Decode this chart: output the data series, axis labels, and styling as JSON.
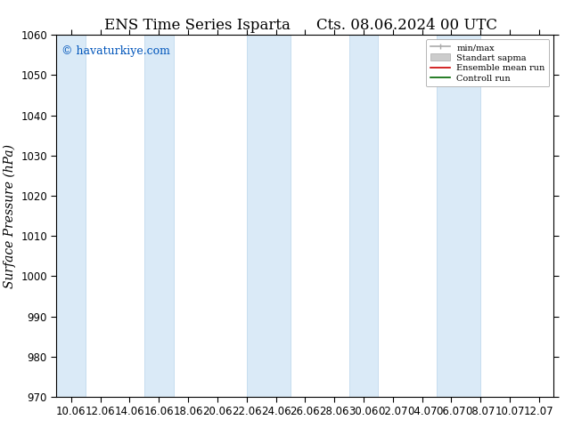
{
  "title_left": "ENS Time Series Isparta",
  "title_right": "Cts. 08.06.2024 00 UTC",
  "ylabel": "Surface Pressure (hPa)",
  "ylim": [
    970,
    1060
  ],
  "yticks": [
    970,
    980,
    990,
    1000,
    1010,
    1020,
    1030,
    1040,
    1050,
    1060
  ],
  "xtick_labels": [
    "10.06",
    "12.06",
    "14.06",
    "16.06",
    "18.06",
    "20.06",
    "22.06",
    "24.06",
    "26.06",
    "28.06",
    "30.06",
    "02.07",
    "04.07",
    "06.07",
    "08.07",
    "10.07",
    "12.07"
  ],
  "watermark": "© havaturkiye.com",
  "bg_color": "#ffffff",
  "band_color": "#daeaf7",
  "band_edge_color": "#b8d4eb",
  "legend_items": [
    {
      "label": "min/max",
      "color": "#aaaaaa",
      "lw": 1.2
    },
    {
      "label": "Standart sapma",
      "color": "#cccccc",
      "lw": 8
    },
    {
      "label": "Ensemble mean run",
      "color": "#cc0000",
      "lw": 1.2
    },
    {
      "label": "Controll run",
      "color": "#006600",
      "lw": 1.2
    }
  ],
  "title_fontsize": 12,
  "tick_fontsize": 8.5,
  "ylabel_fontsize": 10,
  "watermark_fontsize": 9,
  "band_indices": [
    0,
    3,
    6,
    7,
    10,
    13,
    14
  ]
}
